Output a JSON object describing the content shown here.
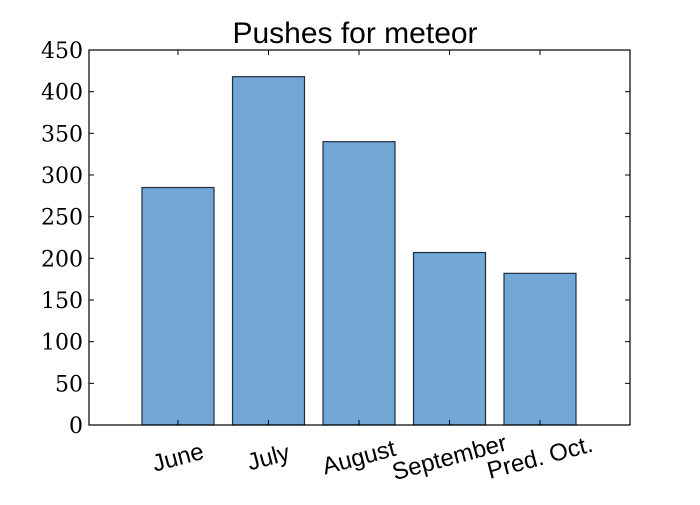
{
  "chart_data": {
    "type": "bar",
    "title": "Pushes for meteor",
    "categories": [
      "June",
      "July",
      "August",
      "September",
      "Pred. Oct."
    ],
    "values": [
      285,
      418,
      340,
      207,
      182
    ],
    "xlabel": "",
    "ylabel": "",
    "ylim": [
      0,
      450
    ],
    "yticks": [
      0,
      50,
      100,
      150,
      200,
      250,
      300,
      350,
      400,
      450
    ],
    "bar_color": "#72a6d4",
    "bar_edge_color": "#1f2f3f",
    "grid": false,
    "legend": "none"
  }
}
